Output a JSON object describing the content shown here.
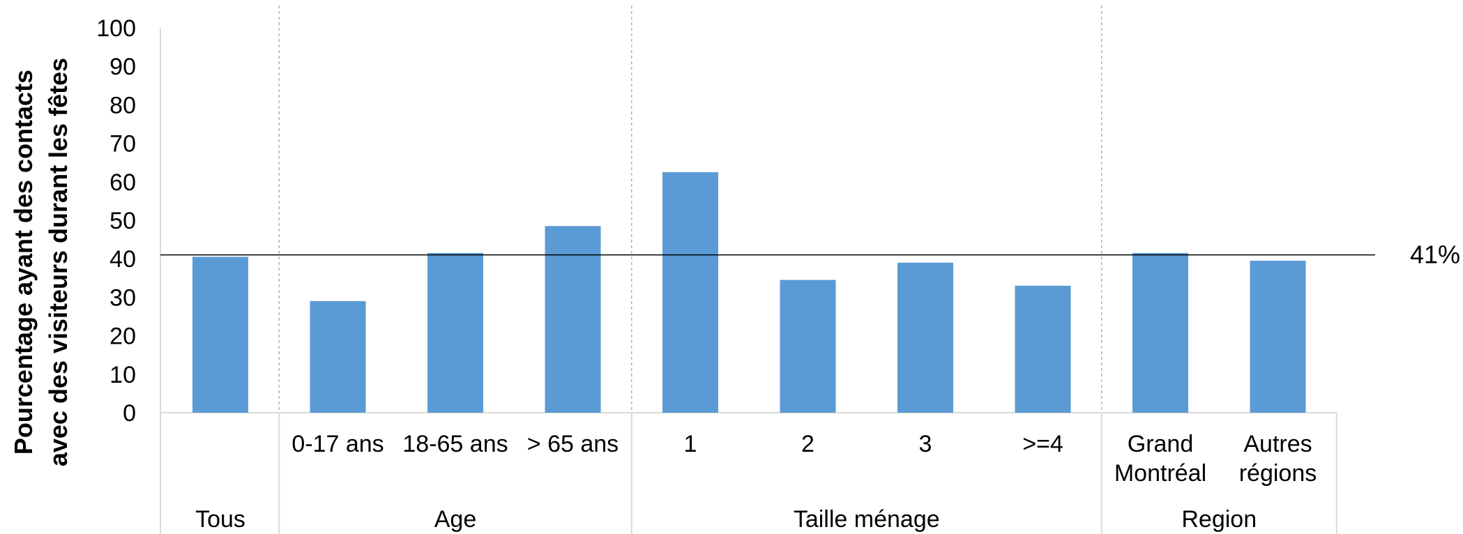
{
  "chart_data": {
    "type": "bar",
    "ylabel_lines": [
      "Pourcentage ayant des contacts",
      "avec des visiteurs durant les fêtes"
    ],
    "ylim": [
      0,
      100
    ],
    "yticks": [
      0,
      10,
      20,
      30,
      40,
      50,
      60,
      70,
      80,
      90,
      100
    ],
    "grid": false,
    "color": "#5B9BD5",
    "categories": [
      {
        "label": [
          ""
        ],
        "value": 40.5
      },
      {
        "label": [
          "0-17 ans"
        ],
        "value": 29
      },
      {
        "label": [
          "18-65 ans"
        ],
        "value": 41.5
      },
      {
        "label": [
          "> 65 ans"
        ],
        "value": 48.5
      },
      {
        "label": [
          "1"
        ],
        "value": 62.5
      },
      {
        "label": [
          "2"
        ],
        "value": 34.5
      },
      {
        "label": [
          "3"
        ],
        "value": 39
      },
      {
        "label": [
          ">=4"
        ],
        "value": 33
      },
      {
        "label": [
          "Grand",
          "Montréal"
        ],
        "value": 41.5
      },
      {
        "label": [
          "Autres",
          "régions"
        ],
        "value": 39.5
      }
    ],
    "groups": [
      {
        "label": "Tous",
        "start": 0,
        "end": 0
      },
      {
        "label": "Age",
        "start": 1,
        "end": 3
      },
      {
        "label": "Taille ménage",
        "start": 4,
        "end": 7
      },
      {
        "label": "Region",
        "start": 8,
        "end": 9
      }
    ],
    "reference_line": {
      "value": 41,
      "label": "41%"
    }
  }
}
